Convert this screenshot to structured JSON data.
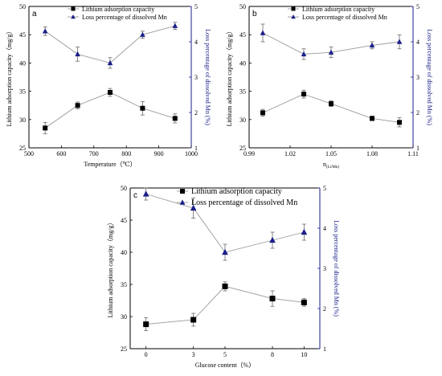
{
  "colors": {
    "left_series": "#000000",
    "right_series": "#1a1f8a",
    "line": "#9a9a9a",
    "error_bar": "#555555"
  },
  "chart_data": [
    {
      "panel": "a",
      "type": "line",
      "xlabel": "Temperature（℃）",
      "ylabel_left": "Lithium adsorption capacity（mg/g）",
      "ylabel_right": "Loss percentage of dissolved Mn (%)",
      "xlim": [
        500,
        1000
      ],
      "ylim_left": [
        25,
        50
      ],
      "ylim_right": [
        1,
        5
      ],
      "xticks": [
        500,
        600,
        700,
        800,
        900,
        1000
      ],
      "yticks_left": [
        25,
        30,
        35,
        40,
        45,
        50
      ],
      "yticks_right": [
        1,
        2,
        3,
        4,
        5
      ],
      "series": [
        {
          "name": "Lithium adsorption capacity",
          "axis": "left",
          "marker": "square",
          "x": [
            550,
            650,
            750,
            850,
            950
          ],
          "y": [
            28.5,
            32.5,
            34.8,
            32.0,
            30.2
          ],
          "err": [
            1.0,
            0.6,
            0.7,
            1.2,
            0.8
          ]
        },
        {
          "name": "Loss percentage of dissolved Mn",
          "axis": "right",
          "marker": "triangle",
          "x": [
            550,
            650,
            750,
            850,
            950
          ],
          "y": [
            4.3,
            3.65,
            3.4,
            4.2,
            4.45
          ],
          "err": [
            0.12,
            0.2,
            0.15,
            0.1,
            0.1
          ]
        }
      ],
      "legend": "top-left"
    },
    {
      "panel": "b",
      "type": "line",
      "xlabel_main": "n",
      "xlabel_sub": "(Li/Mn)",
      "ylabel_left": "Lithium adsorption capacity（mg/g）",
      "ylabel_right": "Loss percentage of dissolved Mn (%)",
      "xlim": [
        0.99,
        1.11
      ],
      "ylim_left": [
        25,
        50
      ],
      "ylim_right": [
        1,
        5
      ],
      "xticks": [
        "0.99",
        "1.02",
        "1.05",
        "1.08",
        "1.11"
      ],
      "yticks_left": [
        25,
        30,
        35,
        40,
        45,
        50
      ],
      "yticks_right": [
        1,
        2,
        3,
        4,
        5
      ],
      "series": [
        {
          "name": "Lithium adsorption capacity",
          "axis": "left",
          "marker": "square",
          "x": [
            1.0,
            1.03,
            1.05,
            1.08,
            1.1
          ],
          "y": [
            31.2,
            34.5,
            32.8,
            30.2,
            29.5
          ],
          "err": [
            0.6,
            0.7,
            0.5,
            0.4,
            0.8
          ]
        },
        {
          "name": "Loss percentage of dissolved Mn",
          "axis": "right",
          "marker": "triangle",
          "x": [
            1.0,
            1.03,
            1.05,
            1.08,
            1.1
          ],
          "y": [
            4.25,
            3.65,
            3.7,
            3.9,
            4.0
          ],
          "err": [
            0.25,
            0.15,
            0.15,
            0.1,
            0.2
          ]
        }
      ],
      "legend": "top-left"
    },
    {
      "panel": "c",
      "type": "line",
      "xlabel": "Glucose content（%）",
      "ylabel_left": "Lithium adsorption capacity（mg/g）",
      "ylabel_right": "Loss percentage of dissolved Mn (%)",
      "xlim": [
        -1,
        11
      ],
      "ylim_left": [
        25,
        50
      ],
      "ylim_right": [
        1,
        5
      ],
      "xticks": [
        0,
        3,
        5,
        8,
        10
      ],
      "yticks_left": [
        25,
        30,
        35,
        40,
        45,
        50
      ],
      "yticks_right": [
        1,
        2,
        3,
        4,
        5
      ],
      "series": [
        {
          "name": "Lithium adsorption capacity",
          "axis": "left",
          "marker": "square",
          "x": [
            0,
            3,
            5,
            8,
            10
          ],
          "y": [
            28.8,
            29.5,
            34.7,
            32.8,
            32.2
          ],
          "err": [
            1.0,
            1.0,
            0.7,
            1.2,
            0.6
          ]
        },
        {
          "name": "Loss percentage of dissolved Mn",
          "axis": "right",
          "marker": "triangle",
          "x": [
            0,
            3,
            5,
            8,
            10
          ],
          "y": [
            4.85,
            4.5,
            3.4,
            3.7,
            3.9
          ],
          "err": [
            0.15,
            0.25,
            0.2,
            0.2,
            0.2
          ]
        }
      ],
      "legend": "top-left"
    }
  ]
}
